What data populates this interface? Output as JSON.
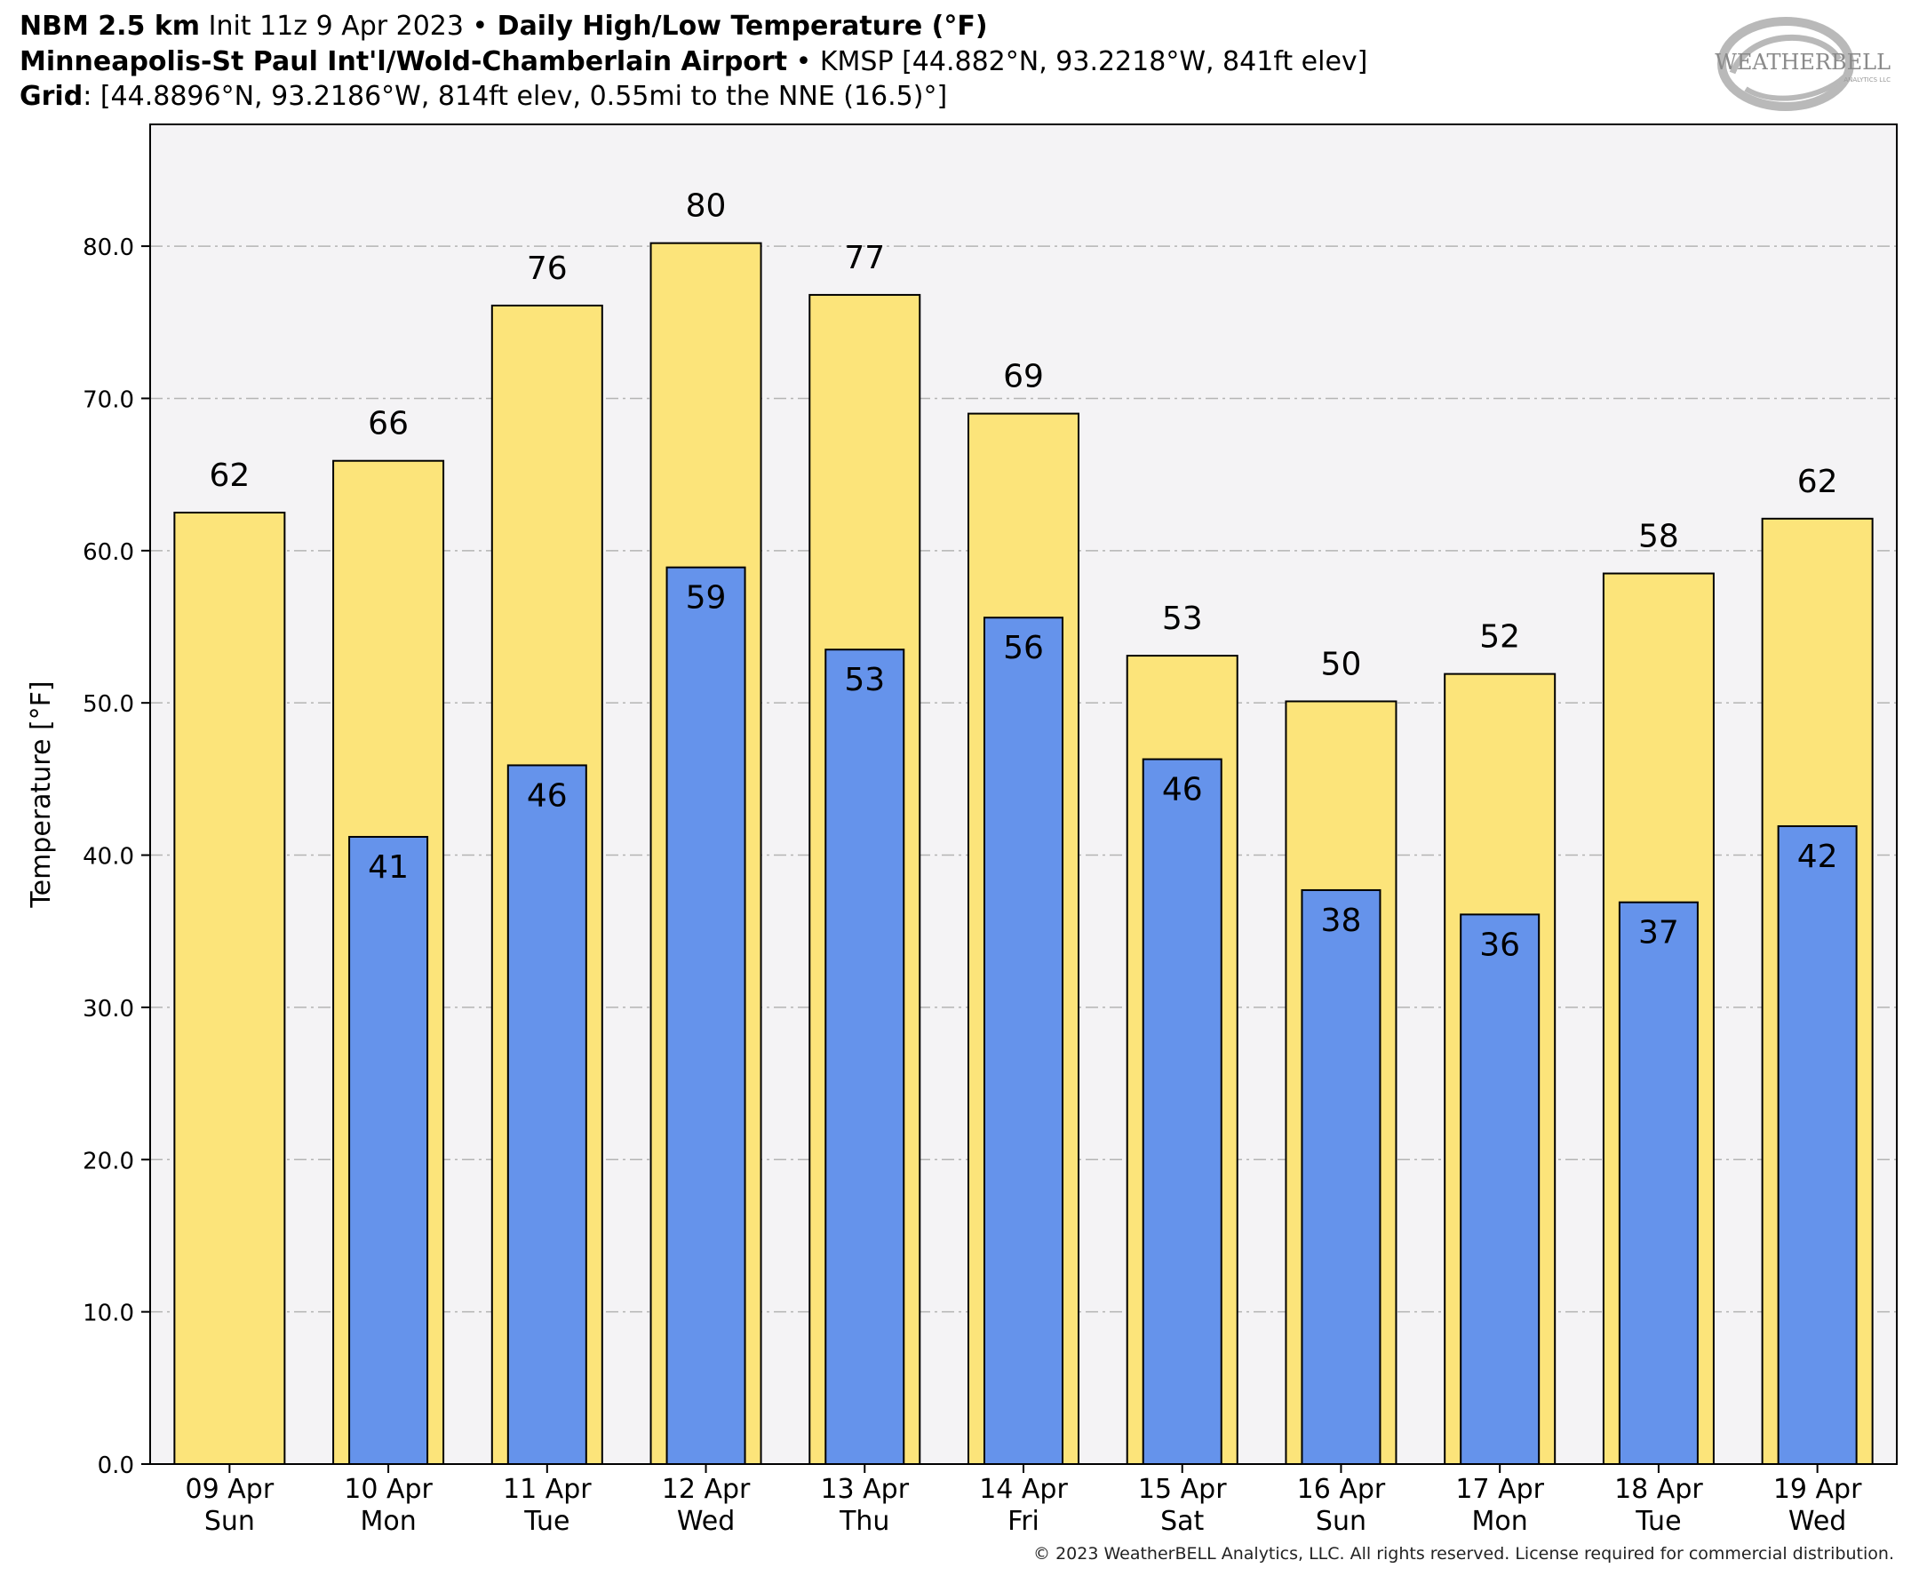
{
  "header": {
    "model": "NBM 2.5 km",
    "init": " Init 11z 9 Apr 2023 ",
    "bullet": "•",
    "product": " Daily High/Low Temperature (°F)",
    "station_name": "Minneapolis-St Paul Int'l/Wold-Chamberlain Airport",
    "station_info": " KMSP [44.882°N, 93.2218°W, 841ft elev]",
    "grid_label": "Grid",
    "grid_info": ": [44.8896°N, 93.2186°W, 814ft elev, 0.55mi to the NNE (16.5)°]"
  },
  "logo": {
    "text": "WEATHERBELL",
    "sub": "ANALYTICS LLC"
  },
  "copyright": "© 2023 WeatherBELL Analytics, LLC. All rights reserved. License required for commercial distribution.",
  "chart_data": {
    "type": "bar",
    "ylabel": "Temperature [°F]",
    "ylim": [
      0,
      88
    ],
    "yticks": [
      "0.0",
      "10.0",
      "20.0",
      "30.0",
      "40.0",
      "50.0",
      "60.0",
      "70.0",
      "80.0"
    ],
    "grid": true,
    "categories": [
      [
        "09 Apr",
        "Sun"
      ],
      [
        "10 Apr",
        "Mon"
      ],
      [
        "11 Apr",
        "Tue"
      ],
      [
        "12 Apr",
        "Wed"
      ],
      [
        "13 Apr",
        "Thu"
      ],
      [
        "14 Apr",
        "Fri"
      ],
      [
        "15 Apr",
        "Sat"
      ],
      [
        "16 Apr",
        "Sun"
      ],
      [
        "17 Apr",
        "Mon"
      ],
      [
        "18 Apr",
        "Tue"
      ],
      [
        "19 Apr",
        "Wed"
      ]
    ],
    "series": [
      {
        "values": [
          62.5,
          65.9,
          76.1,
          80.2,
          76.8,
          69.0,
          53.1,
          50.1,
          51.9,
          58.5,
          62.1
        ],
        "labels": [
          "62",
          "66",
          "76",
          "80",
          "77",
          "69",
          "53",
          "50",
          "52",
          "58",
          "62"
        ],
        "color": "#fce47a"
      },
      {
        "values": [
          null,
          41.2,
          45.9,
          58.9,
          53.5,
          55.6,
          46.3,
          37.7,
          36.1,
          36.9,
          41.9
        ],
        "labels": [
          null,
          "41",
          "46",
          "59",
          "53",
          "56",
          "46",
          "38",
          "36",
          "37",
          "42"
        ],
        "color": "#6593eb"
      }
    ]
  }
}
